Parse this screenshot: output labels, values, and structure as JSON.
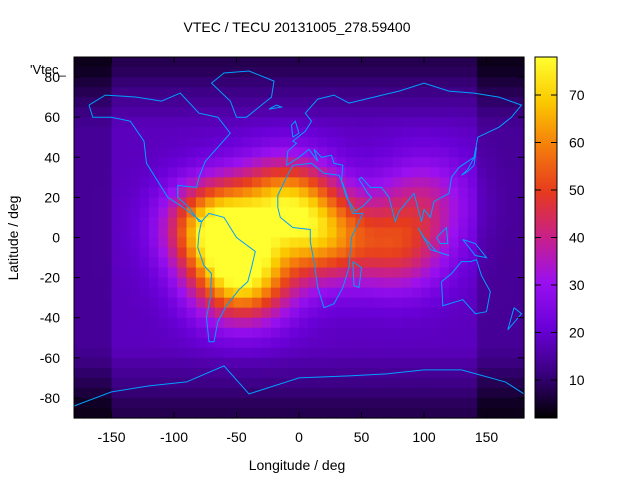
{
  "chart_data": {
    "type": "heatmap",
    "title": "VTEC / TECU 20131005_278.59400",
    "xlabel": "Longitude / deg",
    "ylabel": "Latitude / deg",
    "series_label": "'Vtec_",
    "xlim": [
      -180,
      180
    ],
    "ylim": [
      -90,
      90
    ],
    "xticks": [
      -150,
      -100,
      -50,
      0,
      50,
      100,
      150
    ],
    "yticks": [
      -80,
      -60,
      -40,
      -20,
      0,
      20,
      40,
      60,
      80
    ],
    "colorbar": {
      "min": 2,
      "max": 78,
      "ticks": [
        10,
        20,
        30,
        40,
        50,
        60,
        70
      ]
    },
    "colormap": [
      "#000000",
      "#3a0080",
      "#6a00d8",
      "#9a10f0",
      "#c8208a",
      "#e63a1e",
      "#f47c0c",
      "#fbc800",
      "#ffff30"
    ],
    "background_level": 18,
    "polar_level": 8,
    "anomaly_peaks": [
      {
        "lon": -65,
        "lat": 5,
        "vtec": 75
      },
      {
        "lon": -45,
        "lat": -20,
        "vtec": 70
      },
      {
        "lon": -10,
        "lat": 18,
        "vtec": 60
      },
      {
        "lon": 20,
        "lat": 0,
        "vtec": 55
      },
      {
        "lon": 80,
        "lat": -5,
        "vtec": 45
      },
      {
        "lon": 100,
        "lat": 20,
        "vtec": 35
      }
    ],
    "coastline_color": "#00a0ff"
  }
}
